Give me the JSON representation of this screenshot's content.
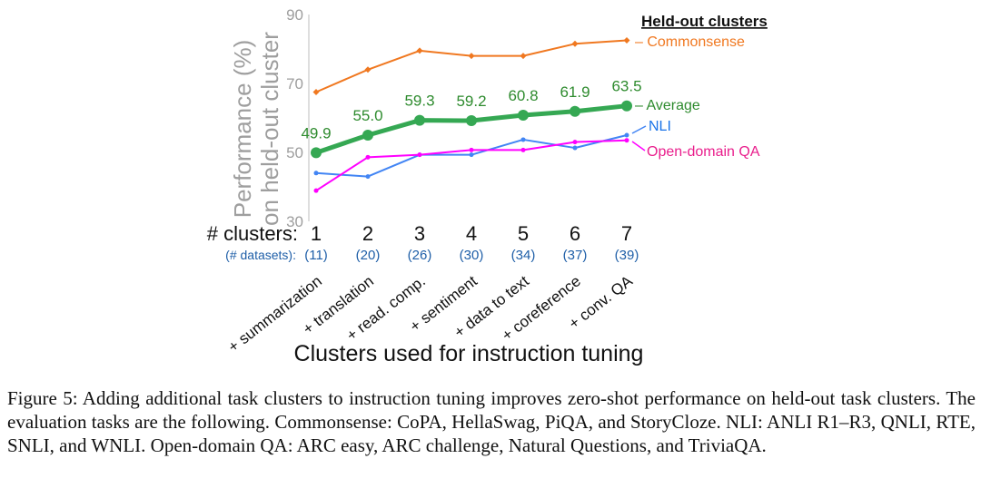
{
  "chart_data": {
    "type": "line",
    "title": "Held-out clusters",
    "ylabel": "Performance (%)",
    "ylabel2": "on held-out cluster",
    "xlabel": "Clusters used for instruction tuning",
    "ylim": [
      30,
      90
    ],
    "yticks": [
      30,
      50,
      70,
      90
    ],
    "ytick_labels": [
      "30",
      "50",
      "70",
      "90"
    ],
    "x": [
      1,
      2,
      3,
      4,
      5,
      6,
      7
    ],
    "clusters_label": "# clusters:",
    "cluster_labels": [
      "1",
      "2",
      "3",
      "4",
      "5",
      "6",
      "7"
    ],
    "datasets_label": "(# datasets):",
    "dataset_labels": [
      "(11)",
      "(20)",
      "(26)",
      "(30)",
      "(34)",
      "(37)",
      "(39)"
    ],
    "category_labels": [
      "+ summarization",
      "+ translation",
      "+ read. comp.",
      "+ sentiment",
      "+ data to text",
      "+ coreference",
      "+ conv. QA"
    ],
    "series": [
      {
        "name": "Commonsense",
        "legend": "– Commonsense",
        "color": "#f07820",
        "values": [
          67.5,
          74.0,
          79.5,
          78.0,
          78.0,
          81.5,
          82.5
        ]
      },
      {
        "name": "Average",
        "legend": "– Average",
        "color": "#35a853",
        "label_color": "#2e8b2e",
        "values": [
          49.9,
          55.0,
          59.3,
          59.2,
          60.8,
          61.9,
          63.5
        ],
        "value_labels": [
          "49.9",
          "55.0",
          "59.3",
          "59.2",
          "60.8",
          "61.9",
          "63.5"
        ]
      },
      {
        "name": "NLI",
        "legend": "NLI",
        "color": "#4285f4",
        "label_color": "#1a73e8",
        "values": [
          44.0,
          43.0,
          49.3,
          49.3,
          53.7,
          51.3,
          55.0
        ]
      },
      {
        "name": "Open-domain QA",
        "legend": "Open-domain QA",
        "color": "#ff00ff",
        "label_color": "#e91e8c",
        "values": [
          38.9,
          48.6,
          49.3,
          50.7,
          50.7,
          53.0,
          53.5
        ]
      }
    ]
  },
  "caption": "Figure 5: Adding additional task clusters to instruction tuning improves zero-shot performance on held-out task clusters. The evaluation tasks are the following. Commonsense: CoPA, HellaSwag, PiQA, and StoryCloze. NLI: ANLI R1–R3, QNLI, RTE, SNLI, and WNLI. Open-domain QA: ARC easy, ARC challenge, Natural Questions, and TriviaQA."
}
